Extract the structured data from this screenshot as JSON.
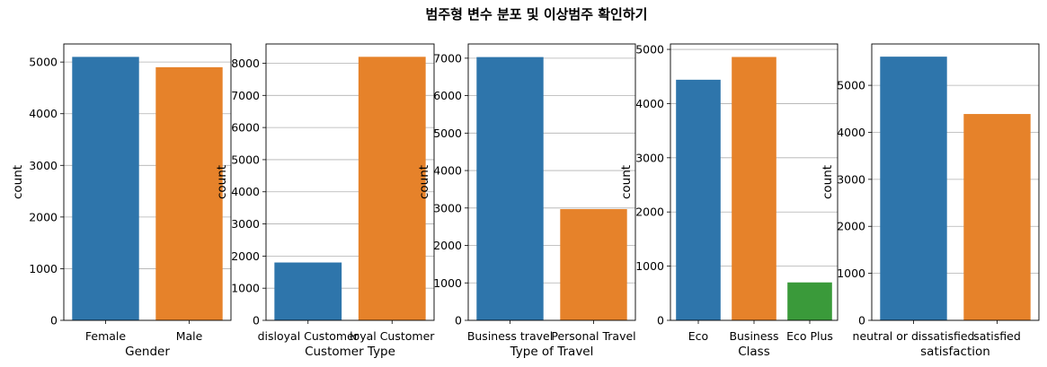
{
  "figure": {
    "title": "범주형 변수 분포 및 이상범주 확인하기"
  },
  "chart_data": [
    {
      "type": "bar",
      "xlabel": "Gender",
      "ylabel": "count",
      "categories": [
        "Female",
        "Male"
      ],
      "values": [
        5100,
        4900
      ],
      "colors": [
        "#2e75ab",
        "#e6822a"
      ],
      "yticks": [
        0,
        1000,
        2000,
        3000,
        4000,
        5000
      ],
      "ylim": [
        0,
        5350
      ],
      "grid": "y"
    },
    {
      "type": "bar",
      "xlabel": "Customer Type",
      "ylabel": "count",
      "categories": [
        "disloyal Customer",
        "loyal Customer"
      ],
      "values": [
        1800,
        8200
      ],
      "colors": [
        "#2e75ab",
        "#e6822a"
      ],
      "yticks": [
        0,
        1000,
        2000,
        3000,
        4000,
        5000,
        6000,
        7000,
        8000
      ],
      "ylim": [
        0,
        8600
      ],
      "grid": "y"
    },
    {
      "type": "bar",
      "xlabel": "Type of Travel",
      "ylabel": "count",
      "categories": [
        "Business travel",
        "Personal Travel"
      ],
      "values": [
        7030,
        2970
      ],
      "colors": [
        "#2e75ab",
        "#e6822a"
      ],
      "yticks": [
        0,
        1000,
        2000,
        3000,
        4000,
        5000,
        6000,
        7000
      ],
      "ylim": [
        0,
        7380
      ],
      "grid": "y"
    },
    {
      "type": "bar",
      "xlabel": "Class",
      "ylabel": "count",
      "categories": [
        "Eco",
        "Business",
        "Eco Plus"
      ],
      "values": [
        4440,
        4860,
        700
      ],
      "colors": [
        "#2e75ab",
        "#e6822a",
        "#3a9a3a"
      ],
      "yticks": [
        0,
        1000,
        2000,
        3000,
        4000,
        5000
      ],
      "ylim": [
        0,
        5100
      ],
      "grid": "y"
    },
    {
      "type": "bar",
      "xlabel": "satisfaction",
      "ylabel": "count",
      "categories": [
        "neutral or dissatisfied",
        "satisfied"
      ],
      "values": [
        5610,
        4390
      ],
      "colors": [
        "#2e75ab",
        "#e6822a"
      ],
      "yticks": [
        0,
        1000,
        2000,
        3000,
        4000,
        5000
      ],
      "ylim": [
        0,
        5880
      ],
      "grid": "y"
    }
  ]
}
